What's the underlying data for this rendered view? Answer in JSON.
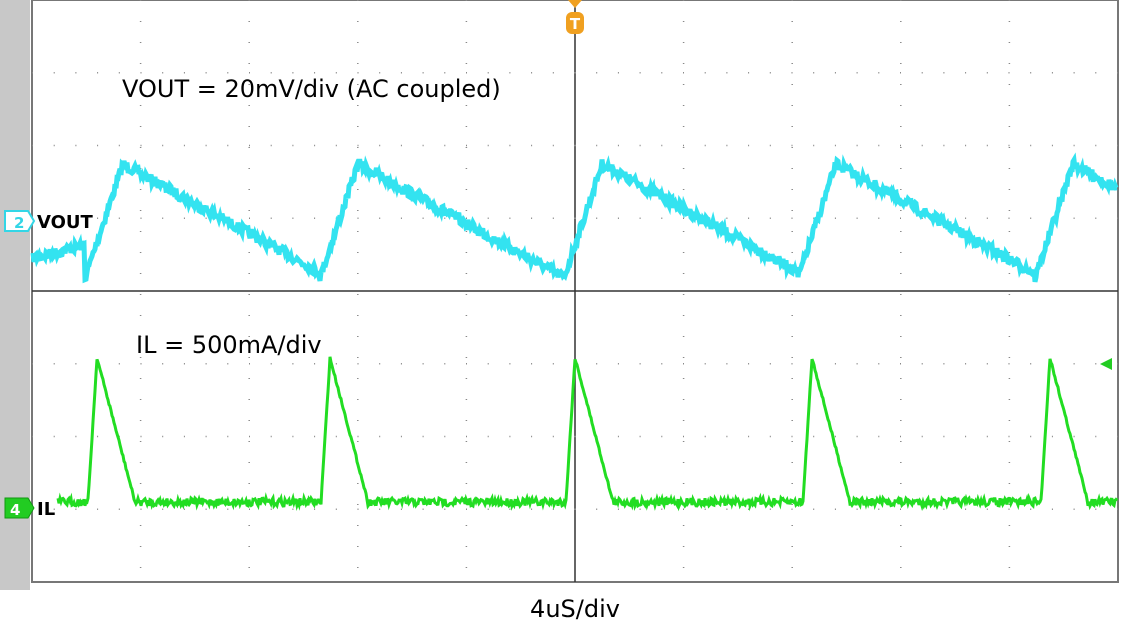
{
  "annotations": {
    "vout_scale": "VOUT = 20mV/div (AC coupled)",
    "il_scale": "IL = 500mA/div",
    "time_scale": "4uS/div"
  },
  "channels": [
    {
      "number": "2",
      "label": "VOUT"
    },
    {
      "number": "4",
      "label": "IL"
    }
  ],
  "trigger": "T"
}
